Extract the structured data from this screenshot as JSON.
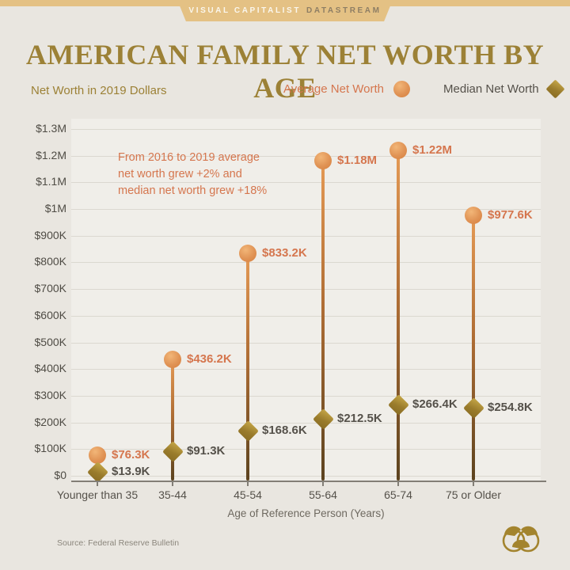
{
  "header": {
    "brand": "VISUAL CAPITALIST",
    "brand_suffix": "DATASTREAM",
    "title": "AMERICAN FAMILY NET WORTH BY AGE",
    "subtitle": "Net Worth in 2019 Dollars"
  },
  "legend": {
    "average_label": "Average Net Worth",
    "median_label": "Median Net Worth"
  },
  "annotation": {
    "lines": [
      "From 2016 to 2019 average",
      "net worth grew +2% and",
      "median net worth grew +18%"
    ]
  },
  "chart_data": {
    "type": "lollipop",
    "categories": [
      "Younger than 35",
      "35-44",
      "45-54",
      "55-64",
      "65-74",
      "75 or Older"
    ],
    "series": [
      {
        "name": "Average Net Worth",
        "marker": "circle",
        "color": "#D5764E",
        "values": [
          76300,
          436200,
          833200,
          1180000,
          1220000,
          977600
        ],
        "labels": [
          "$76.3K",
          "$436.2K",
          "$833.2K",
          "$1.18M",
          "$1.22M",
          "$977.6K"
        ]
      },
      {
        "name": "Median Net Worth",
        "marker": "diamond",
        "color": "#55514A",
        "values": [
          13900,
          91300,
          168600,
          212500,
          266400,
          254800
        ],
        "labels": [
          "$13.9K",
          "$91.3K",
          "$168.6K",
          "$212.5K",
          "$266.4K",
          "$254.8K"
        ]
      }
    ],
    "xlabel": "Age of Reference Person (Years)",
    "ylabel": "Net Worth in 2019 Dollars",
    "y_ticks": [
      "$0",
      "$100K",
      "$200K",
      "$300K",
      "$400K",
      "$500K",
      "$600K",
      "$700K",
      "$800K",
      "$900K",
      "$1M",
      "$1.1M",
      "$1.2M",
      "$1.3M"
    ],
    "ylim": [
      0,
      1300000
    ],
    "grid": true,
    "legend_position": "top-right"
  },
  "footer": {
    "source": "Source: Federal Reserve Bulletin"
  },
  "colors": {
    "background": "#E9E6E0",
    "panel": "#F0EEE9",
    "brand_tan": "#E4C184",
    "title_gold": "#9C8136",
    "average_orange": "#D5764E",
    "median_gold": "#9A7C2C",
    "label_dark": "#55514A"
  }
}
